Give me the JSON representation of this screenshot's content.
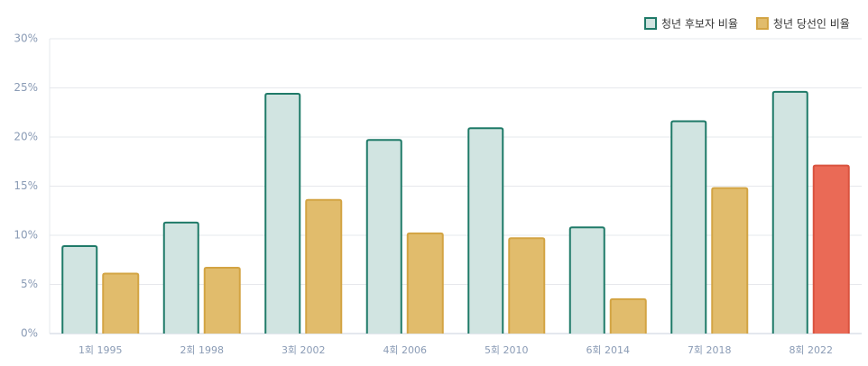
{
  "chart_data": {
    "type": "bar",
    "categories": [
      "1회 1995",
      "2회 1998",
      "3회 2002",
      "4회 2006",
      "5회 2010",
      "6회 2014",
      "7회 2018",
      "8회 2022"
    ],
    "series": [
      {
        "name": "청년 후보자 비율",
        "color": "#d1e4e1",
        "edge_color": "#1f7a68",
        "values": [
          8.9,
          11.3,
          24.4,
          19.7,
          20.9,
          10.8,
          21.6,
          24.6
        ]
      },
      {
        "name": "청년 당선인 비율",
        "color": "#e1bc6c",
        "edge_color": "#d3a443",
        "colors": [
          "#e1bc6c",
          "#e1bc6c",
          "#e1bc6c",
          "#e1bc6c",
          "#e1bc6c",
          "#e1bc6c",
          "#e1bc6c",
          "#ea6a56"
        ],
        "edge_colors": [
          "#d3a443",
          "#d3a443",
          "#d3a443",
          "#d3a443",
          "#d3a443",
          "#d3a443",
          "#d3a443",
          "#d9533f"
        ],
        "values": [
          6.1,
          6.7,
          13.6,
          10.2,
          9.7,
          3.5,
          14.8,
          17.1
        ]
      }
    ],
    "ylim": [
      0,
      30
    ],
    "yticks": [
      {
        "value": 0,
        "label": "0%"
      },
      {
        "value": 5,
        "label": "5%"
      },
      {
        "value": 10,
        "label": "10%"
      },
      {
        "value": 15,
        "label": "15%"
      },
      {
        "value": 20,
        "label": "20%"
      },
      {
        "value": 25,
        "label": "25%"
      },
      {
        "value": 30,
        "label": "30%"
      }
    ],
    "grid": true,
    "legend": "top-right"
  }
}
